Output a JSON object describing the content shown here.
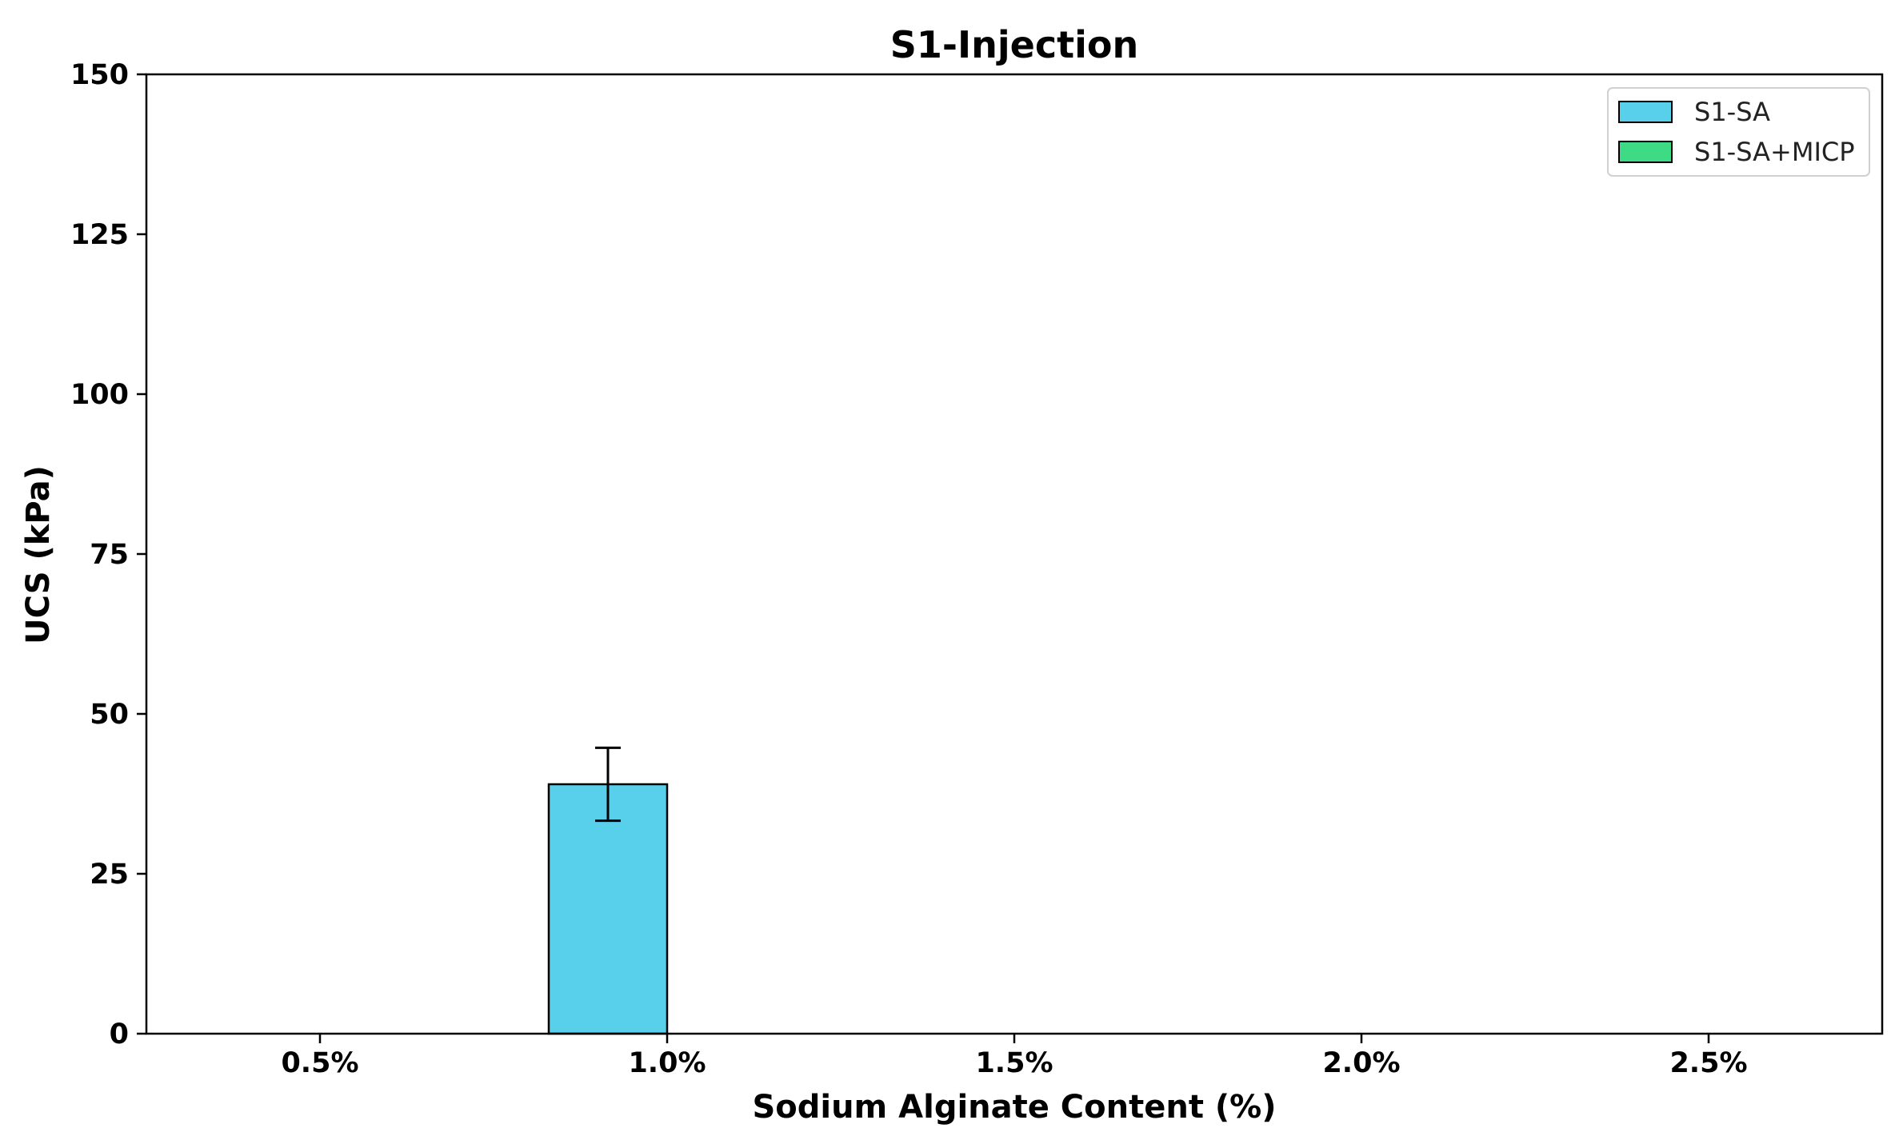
{
  "chart_data": {
    "type": "bar",
    "title": "S1-Injection",
    "xlabel": "Sodium Alginate Content (%)",
    "ylabel": "UCS (kPa)",
    "categories": [
      "0.5%",
      "1.0%",
      "1.5%",
      "2.0%",
      "2.5%"
    ],
    "ylim": [
      0,
      150
    ],
    "yticks": [
      0,
      25,
      50,
      75,
      100,
      125,
      150
    ],
    "grid": false,
    "legend_position": "top-right",
    "series": [
      {
        "name": "S1-SA",
        "color": "#58cfeb",
        "values": [
          0,
          39,
          0,
          0,
          0
        ],
        "errors": [
          0,
          5.7,
          0,
          0,
          0
        ]
      },
      {
        "name": "S1-SA+MICP",
        "color": "#3ddc84",
        "values": [
          0,
          0,
          0,
          0,
          0
        ],
        "errors": [
          0,
          0,
          0,
          0,
          0
        ]
      }
    ]
  }
}
